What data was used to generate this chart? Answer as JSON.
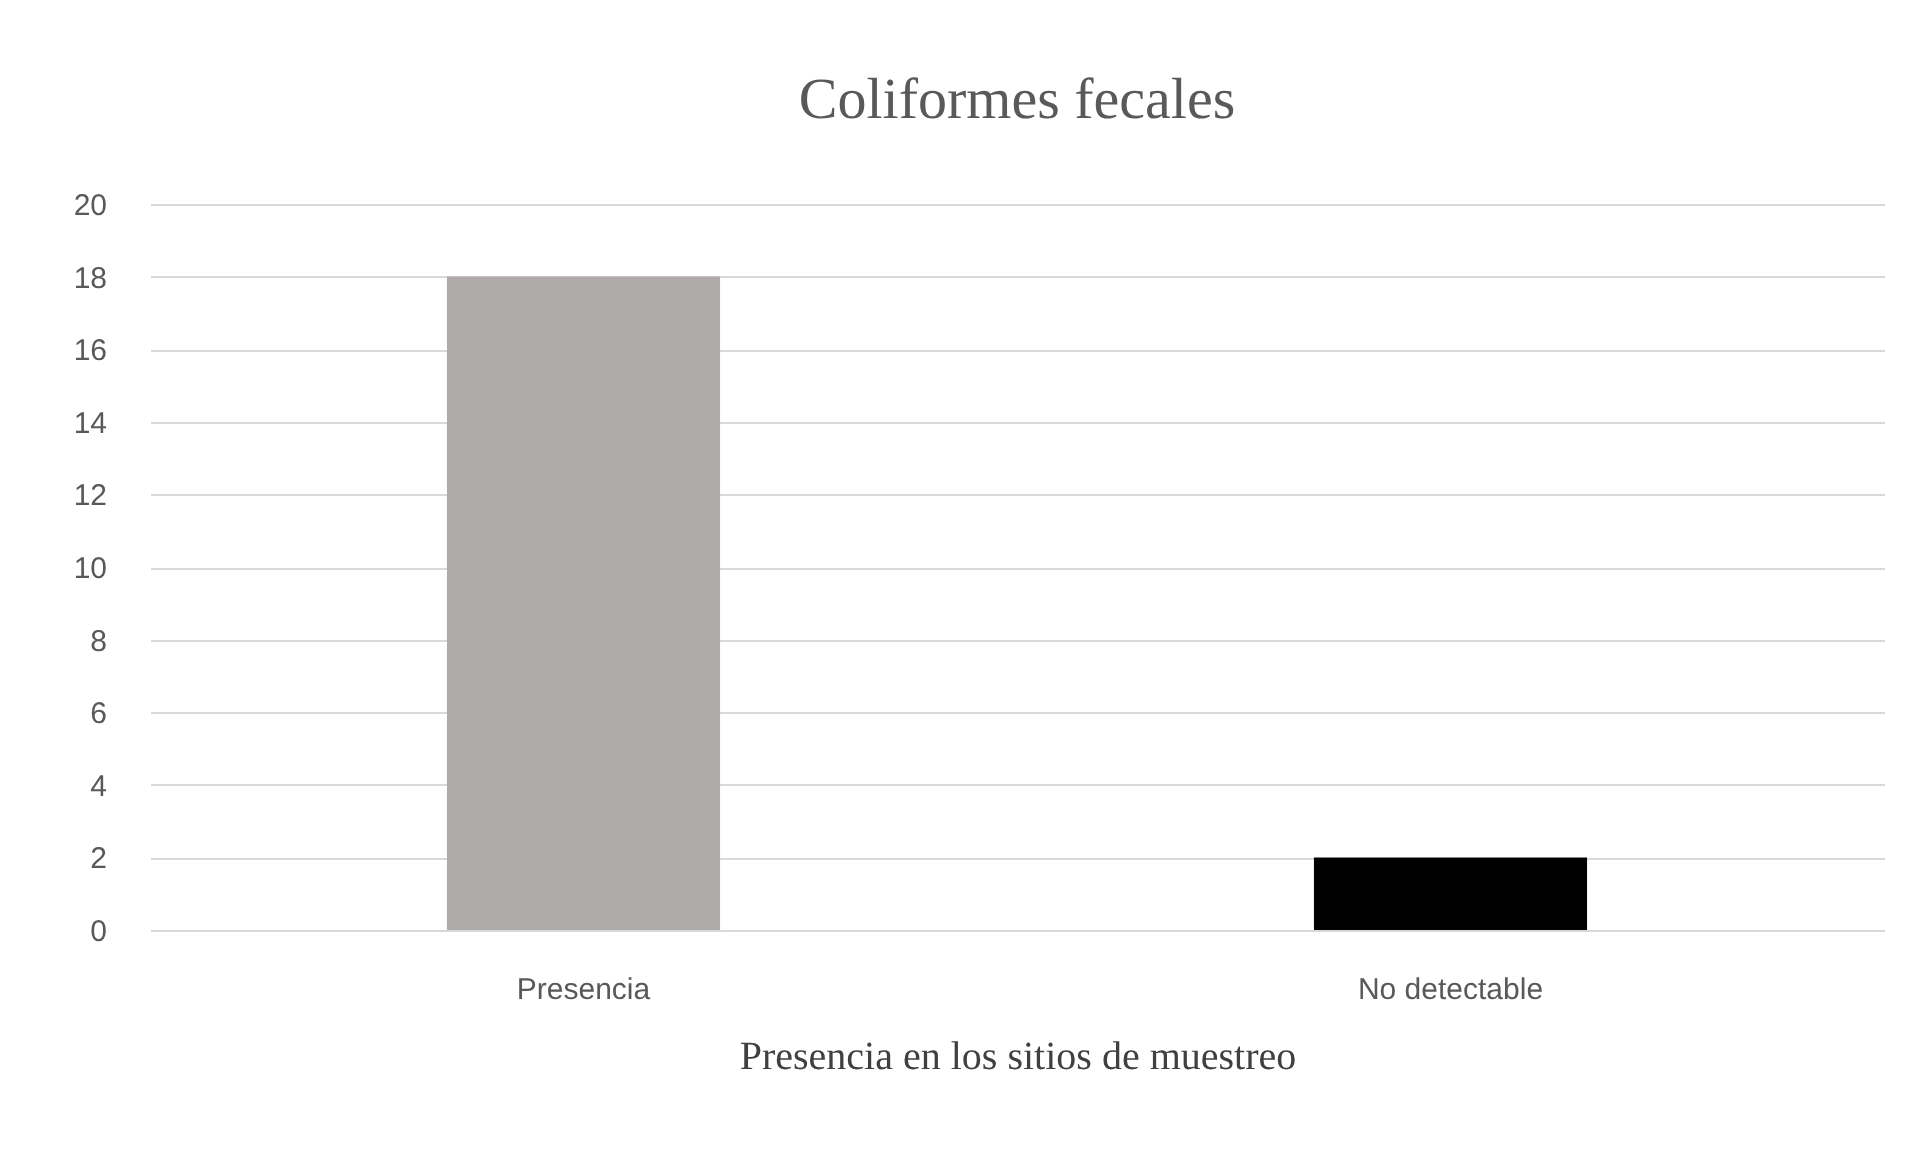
{
  "chart_data": {
    "type": "bar",
    "title": "Coliformes  fecales",
    "xlabel": "Presencia en los sitios de muestreo",
    "categories": [
      "Presencia",
      "No detectable"
    ],
    "values": [
      18,
      2
    ],
    "colors": [
      "#aeaaaa",
      "#000000"
    ],
    "ylim": [
      0,
      20
    ],
    "yticks": [
      0,
      2,
      4,
      6,
      8,
      10,
      12,
      14,
      16,
      18,
      20
    ],
    "grid": "y",
    "legend": false
  }
}
